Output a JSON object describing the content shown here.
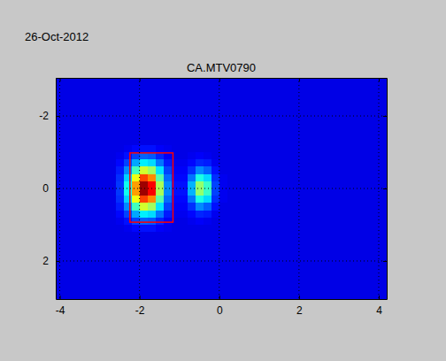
{
  "chart_data": {
    "type": "heatmap",
    "title": "CA.MTV0790",
    "subtitle": "26-Oct-2012",
    "x_edges": [
      -4.1,
      -2.6,
      -2.4,
      -2.2,
      -2.0,
      -1.8,
      -1.6,
      -1.4,
      -1.2,
      -1.0,
      -0.8,
      -0.6,
      -0.4,
      -0.2,
      0,
      0.2,
      4.2
    ],
    "y_edges": [
      -3.05,
      -1.2,
      -1.0,
      -0.8,
      -0.6,
      -0.4,
      -0.2,
      0,
      0.2,
      0.4,
      0.6,
      0.8,
      1.0,
      1.2,
      3.05
    ],
    "cells": [
      [
        10,
        10,
        10,
        10,
        10,
        10,
        10,
        10,
        10,
        10,
        10,
        10,
        10,
        10,
        10,
        10
      ],
      [
        10,
        10,
        11,
        13,
        14,
        14,
        12,
        11,
        10,
        10,
        10,
        10,
        10,
        10,
        10,
        10
      ],
      [
        10,
        11,
        14,
        19,
        22,
        21,
        16,
        12,
        10,
        10,
        11,
        12,
        11,
        10,
        10,
        10
      ],
      [
        10,
        13,
        19,
        29,
        36,
        34,
        24,
        15,
        11,
        11,
        13,
        16,
        15,
        11,
        10,
        10
      ],
      [
        10,
        15,
        26,
        44,
        58,
        53,
        35,
        19,
        12,
        12,
        17,
        26,
        22,
        14,
        10,
        10
      ],
      [
        10,
        17,
        33,
        61,
        81,
        74,
        46,
        23,
        13,
        13,
        24,
        40,
        34,
        17,
        11,
        10
      ],
      [
        10,
        18,
        39,
        72,
        97,
        88,
        54,
        26,
        14,
        14,
        30,
        52,
        43,
        19,
        11,
        10
      ],
      [
        10,
        18,
        39,
        72,
        97,
        88,
        54,
        26,
        14,
        14,
        30,
        52,
        43,
        19,
        11,
        10
      ],
      [
        10,
        17,
        33,
        61,
        81,
        74,
        46,
        23,
        13,
        13,
        24,
        40,
        34,
        17,
        11,
        10
      ],
      [
        10,
        15,
        26,
        44,
        58,
        53,
        35,
        19,
        12,
        12,
        17,
        26,
        22,
        14,
        10,
        10
      ],
      [
        10,
        13,
        19,
        29,
        36,
        34,
        24,
        15,
        11,
        11,
        13,
        16,
        15,
        11,
        10,
        10
      ],
      [
        10,
        11,
        14,
        19,
        22,
        21,
        16,
        12,
        10,
        10,
        11,
        12,
        11,
        10,
        10,
        10
      ],
      [
        10,
        10,
        11,
        13,
        14,
        14,
        12,
        11,
        10,
        10,
        10,
        10,
        10,
        10,
        10,
        10
      ],
      [
        10,
        10,
        10,
        10,
        10,
        10,
        10,
        10,
        10,
        10,
        10,
        10,
        10,
        10,
        10,
        10
      ]
    ],
    "zlim": [
      0,
      100
    ],
    "xlim": [
      -4.1,
      4.2
    ],
    "ylim": [
      3.05,
      -3.05
    ],
    "xticks": [
      -4,
      -2,
      0,
      2,
      4
    ],
    "yticks": [
      -2,
      0,
      2
    ],
    "grid": true,
    "box": {
      "x": [
        -2.24,
        -1.16
      ],
      "y": [
        -0.98,
        0.93
      ],
      "color": "#ff0000"
    }
  }
}
